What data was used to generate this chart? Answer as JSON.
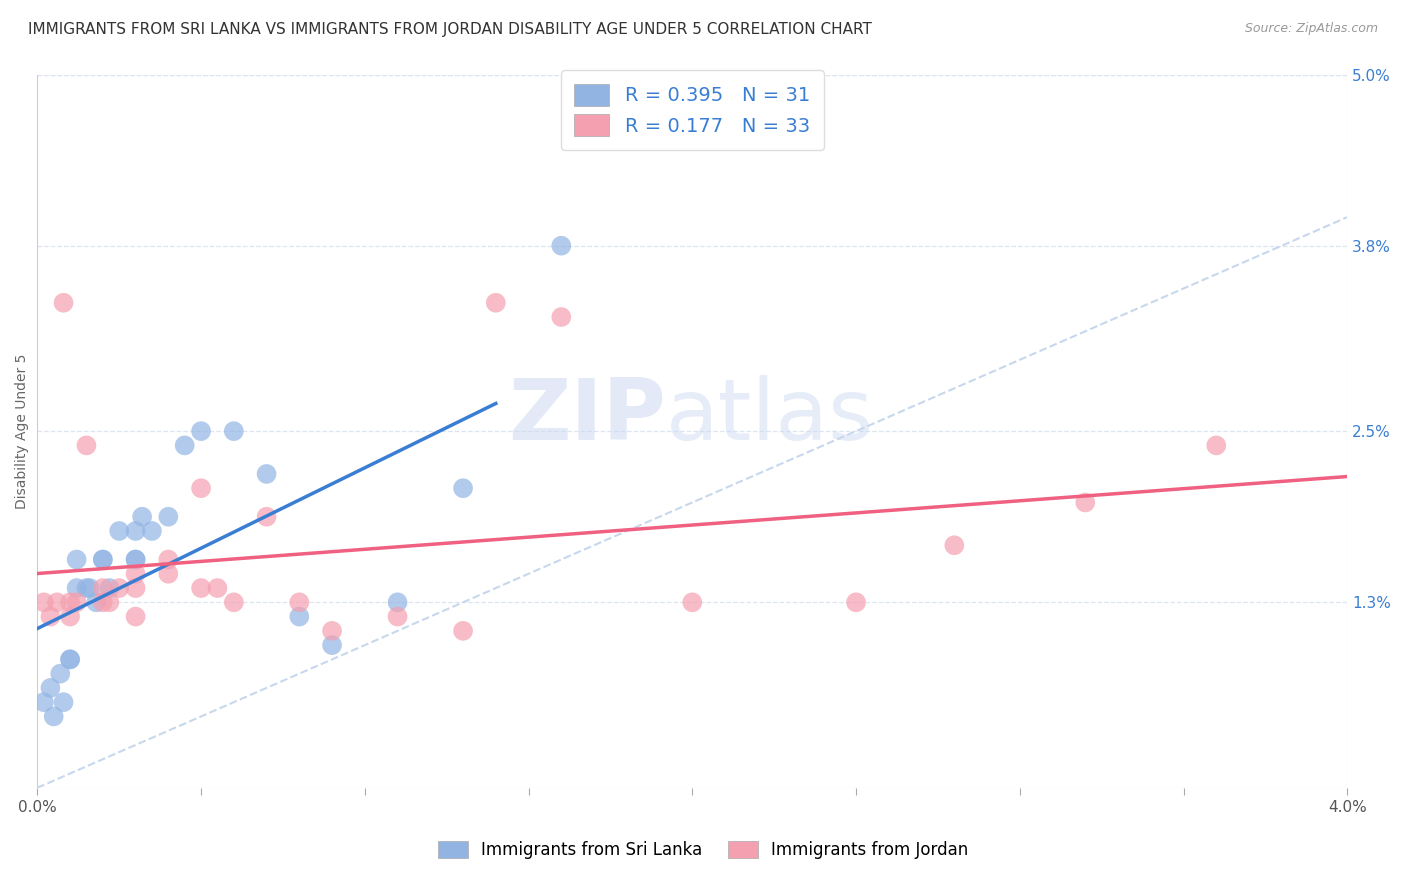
{
  "title": "IMMIGRANTS FROM SRI LANKA VS IMMIGRANTS FROM JORDAN DISABILITY AGE UNDER 5 CORRELATION CHART",
  "source": "Source: ZipAtlas.com",
  "ylabel": "Disability Age Under 5",
  "x_min": 0.0,
  "x_max": 0.04,
  "y_min": 0.0,
  "y_max": 0.05,
  "x_ticks": [
    0.0,
    0.005,
    0.01,
    0.015,
    0.02,
    0.025,
    0.03,
    0.035,
    0.04
  ],
  "x_tick_labels_show": {
    "0.0": "0.0%",
    "0.04": "4.0%"
  },
  "y_ticks_right": [
    0.013,
    0.025,
    0.038,
    0.05
  ],
  "y_tick_labels_right": [
    "1.3%",
    "2.5%",
    "3.8%",
    "5.0%"
  ],
  "sri_lanka_color": "#92b4e3",
  "jordan_color": "#f4a0b0",
  "sri_lanka_line_color": "#3a7ed4",
  "jordan_line_color": "#f06080",
  "ref_line_color": "#c8d8ec",
  "R_sri_lanka": 0.395,
  "N_sri_lanka": 31,
  "R_jordan": 0.177,
  "N_jordan": 33,
  "sri_lanka_x": [
    0.0002,
    0.0004,
    0.0005,
    0.0007,
    0.0008,
    0.001,
    0.001,
    0.0012,
    0.0012,
    0.0015,
    0.0016,
    0.0018,
    0.002,
    0.002,
    0.0022,
    0.0025,
    0.003,
    0.003,
    0.003,
    0.0032,
    0.0035,
    0.004,
    0.0045,
    0.005,
    0.006,
    0.007,
    0.008,
    0.009,
    0.011,
    0.013,
    0.016
  ],
  "sri_lanka_y": [
    0.006,
    0.007,
    0.005,
    0.008,
    0.006,
    0.009,
    0.009,
    0.014,
    0.016,
    0.014,
    0.014,
    0.013,
    0.016,
    0.016,
    0.014,
    0.018,
    0.016,
    0.016,
    0.018,
    0.019,
    0.018,
    0.019,
    0.024,
    0.025,
    0.025,
    0.022,
    0.012,
    0.01,
    0.013,
    0.021,
    0.038
  ],
  "jordan_x": [
    0.0002,
    0.0004,
    0.0006,
    0.0008,
    0.001,
    0.001,
    0.0012,
    0.0015,
    0.002,
    0.002,
    0.0022,
    0.0025,
    0.003,
    0.003,
    0.003,
    0.004,
    0.004,
    0.005,
    0.005,
    0.0055,
    0.006,
    0.007,
    0.008,
    0.009,
    0.011,
    0.013,
    0.014,
    0.016,
    0.02,
    0.025,
    0.028,
    0.032,
    0.036
  ],
  "jordan_y": [
    0.013,
    0.012,
    0.013,
    0.034,
    0.012,
    0.013,
    0.013,
    0.024,
    0.013,
    0.014,
    0.013,
    0.014,
    0.012,
    0.014,
    0.015,
    0.015,
    0.016,
    0.021,
    0.014,
    0.014,
    0.013,
    0.019,
    0.013,
    0.011,
    0.012,
    0.011,
    0.034,
    0.033,
    0.013,
    0.013,
    0.017,
    0.02,
    0.024
  ],
  "watermark_zip": "ZIP",
  "watermark_atlas": "atlas",
  "legend_label_1": "Immigrants from Sri Lanka",
  "legend_label_2": "Immigrants from Jordan",
  "background_color": "#ffffff",
  "plot_bg_color": "#ffffff",
  "grid_color": "#dde5f0",
  "title_fontsize": 11,
  "axis_fontsize": 10,
  "tick_fontsize": 11
}
